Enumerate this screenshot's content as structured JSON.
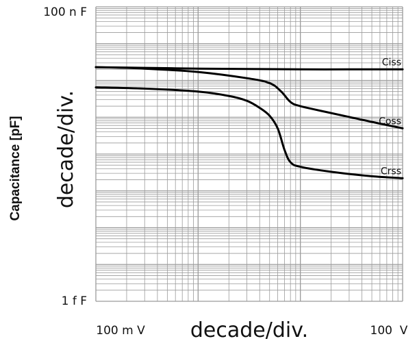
{
  "chart_data": {
    "type": "line",
    "ylabel": "Capacitance [pF]",
    "y_scale_label": "decade/div.",
    "x_scale_label": "decade/div.",
    "y_scale": "log",
    "x_scale": "log",
    "grid": true,
    "y_tick_labels": {
      "top": "100 n F",
      "bottom": "1 f F"
    },
    "x_tick_labels": {
      "left": "100 m V",
      "right": "100  V"
    },
    "xlim": [
      0.1,
      100
    ],
    "ylim": [
      1e-15,
      1e-07
    ],
    "series": [
      {
        "name": "Ciss",
        "color": "#000000",
        "x": [
          0.1,
          0.3,
          1,
          3,
          10,
          30,
          100
        ],
        "y": [
          2.3e-09,
          2.2e-09,
          2.1e-09,
          2.05e-09,
          2e-09,
          2e-09,
          2e-09
        ]
      },
      {
        "name": "Coss",
        "color": "#000000",
        "x": [
          0.1,
          0.3,
          1,
          3,
          5,
          6.5,
          8,
          10,
          20,
          50,
          100
        ],
        "y": [
          2.3e-09,
          2.1e-09,
          1.7e-09,
          1.15e-09,
          8.5e-10,
          5e-10,
          2.6e-10,
          2e-10,
          1.3e-10,
          7.5e-11,
          5e-11
        ]
      },
      {
        "name": "Crss",
        "color": "#000000",
        "x": [
          0.1,
          0.3,
          1,
          2,
          3,
          4,
          5,
          6,
          7,
          8,
          10,
          20,
          50,
          100
        ],
        "y": [
          6.5e-10,
          6e-10,
          5e-10,
          3.8e-10,
          2.8e-10,
          1.8e-10,
          1.1e-10,
          5e-11,
          1.3e-11,
          6e-12,
          4.5e-12,
          3.3e-12,
          2.5e-12,
          2.2e-12
        ]
      }
    ]
  }
}
